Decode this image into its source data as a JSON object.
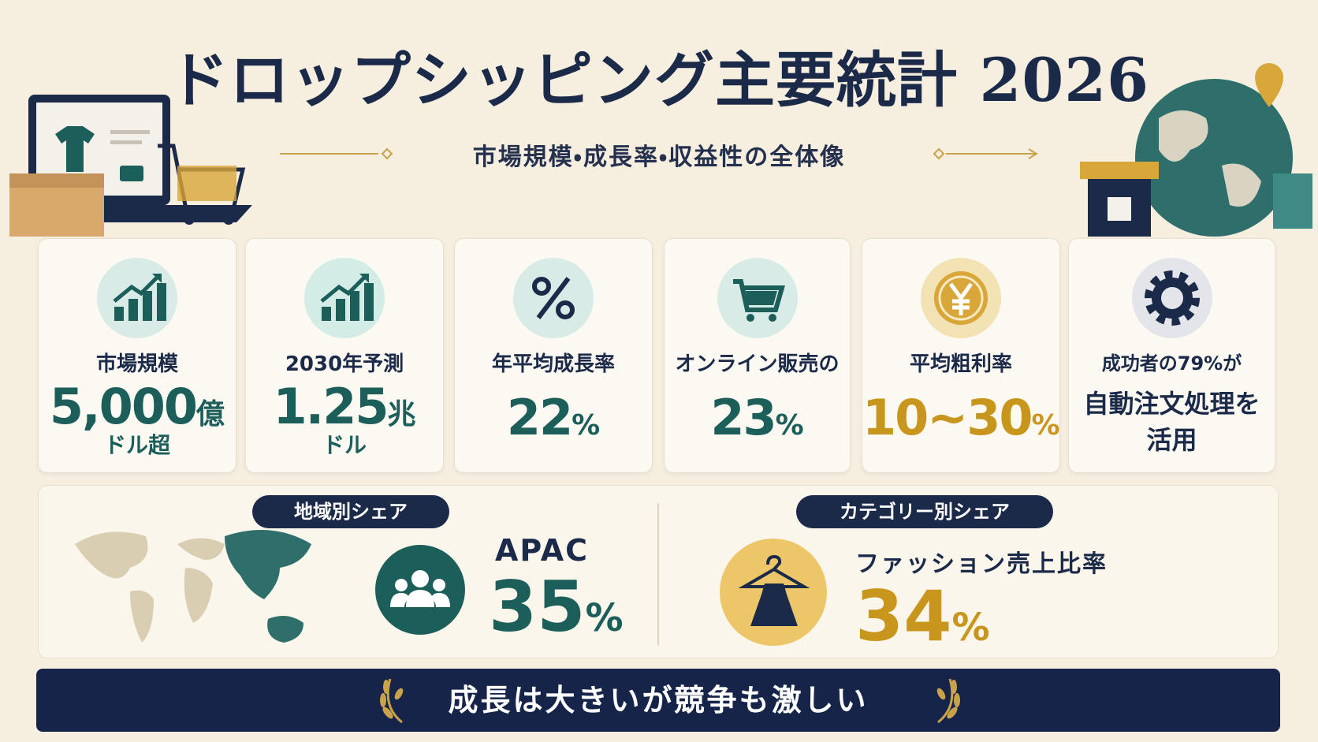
{
  "header": {
    "title": "ドロップシッピング主要統計 2026",
    "subtitle": "市場規模・成長率・収益性の全体像"
  },
  "cards": [
    {
      "label": "市場規模",
      "value": "5,000",
      "unit": "億",
      "suffix": "ドル超"
    },
    {
      "label": "2030年予測",
      "value": "1.25",
      "unit": "兆",
      "suffix": "ドル"
    },
    {
      "label": "年平均成長率",
      "value": "22",
      "unit": "%"
    },
    {
      "label": "オンライン販売の",
      "value": "23",
      "unit": "%"
    },
    {
      "label": "平均粗利率",
      "value": "10~30",
      "unit": "%"
    },
    {
      "lines": [
        "成功者の79%が",
        "自動注文処理を",
        "活用"
      ]
    }
  ],
  "region": {
    "badge": "地域別シェア",
    "label": "APAC",
    "value": "35",
    "unit": "%"
  },
  "category": {
    "badge": "カテゴリー別シェア",
    "label": "ファッション売上比率",
    "value": "34",
    "unit": "%"
  },
  "footer": "成長は大きいが競争も激しい"
}
